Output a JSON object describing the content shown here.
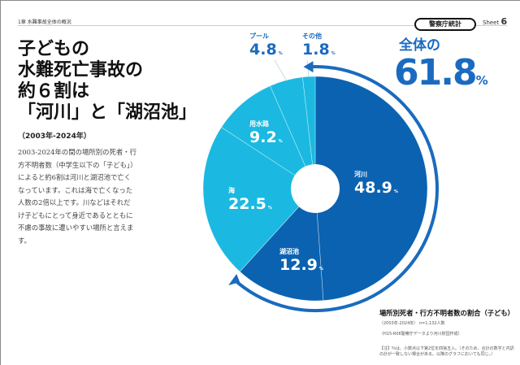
{
  "header": {
    "chapter": "1章 水難事故全体の概況",
    "badge": "警察庁統計",
    "sheet_label": "Sheet",
    "sheet_num": "6"
  },
  "title": [
    "子どもの",
    "水難死亡事故の",
    "約６割は",
    "「河川」と「湖沼池」"
  ],
  "years": "（2003年-2024年）",
  "body": "2003-2024年の間の場所別の死者・行方不明者数（中学生以下の「子ども」）によると約6割は河川と湖沼池で亡くなっています。これは海で亡くなった人数の2倍以上です。川などはそれだけ子どもにとって身近であるとともに不慮の事故に遭いやすい場所と言えます。",
  "total": {
    "label": "全体の",
    "value": "61.8",
    "unit": "%"
  },
  "caption": {
    "title": "場所別死者・行方不明者数の割合（子ども）",
    "period": "（2003年-2024年） n=1,132人数",
    "source": "（H15-R06警察庁データより河川財団作成）",
    "note": "【注】％は、小数点以下第2位を四捨五入。（そのため、合計の数字と内訳の計が一致しない場合がある。以降のグラフにおいても同じ。）"
  },
  "colors": {
    "dark": "#0b62b0",
    "light": "#1bb9e1",
    "accent": "#1a6bbf"
  },
  "chart_data": {
    "type": "pie",
    "unit": "%",
    "categories": [
      "河川",
      "湖沼池",
      "海",
      "用水路",
      "プール",
      "その他"
    ],
    "values": [
      48.9,
      12.9,
      22.5,
      9.2,
      4.8,
      1.8
    ],
    "value_labels": [
      "48.9",
      "12.9",
      "22.5",
      "9.2",
      "4.8",
      "1.8"
    ],
    "highlight": [
      "河川",
      "湖沼池"
    ]
  }
}
